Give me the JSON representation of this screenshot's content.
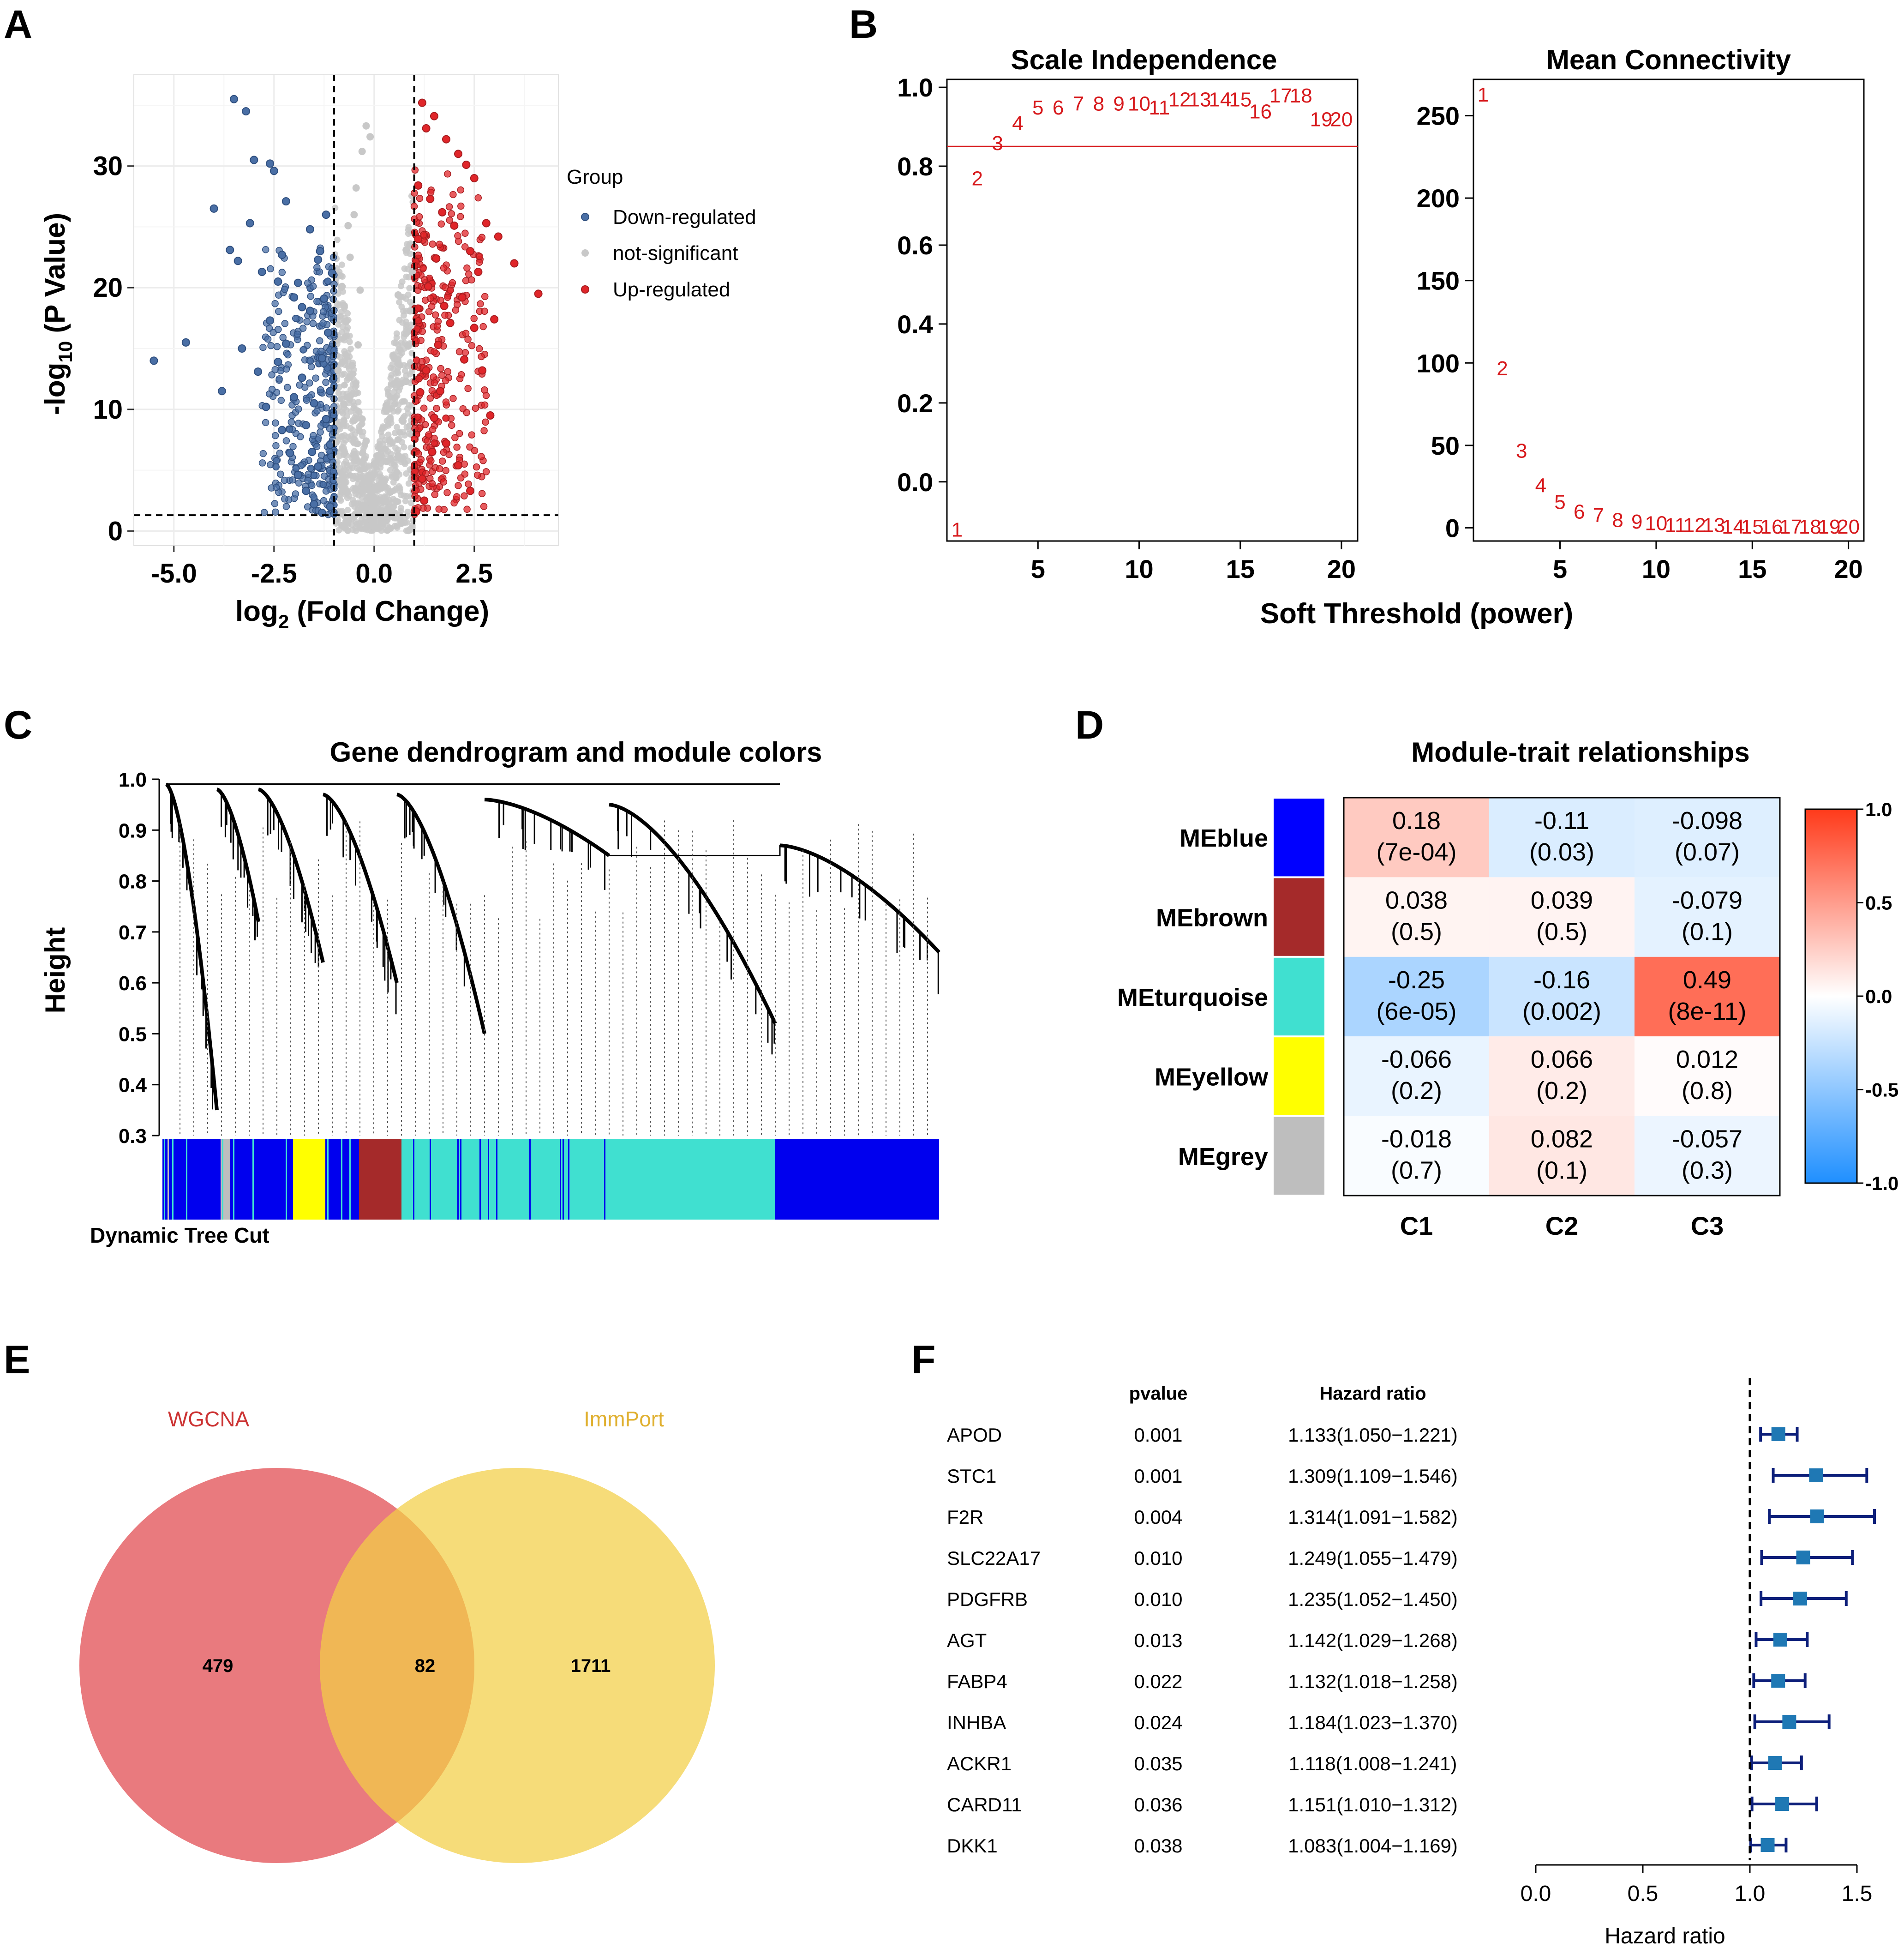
{
  "panels": {
    "a": "A",
    "b": "B",
    "c": "C",
    "d": "D",
    "e": "E",
    "f": "F"
  },
  "chart_data": [
    {
      "id": "A",
      "type": "scatter",
      "title": "",
      "xlabel": "log2 (Fold Change)",
      "ylabel": "-log10 (P Value)",
      "xlabel_parts": {
        "pre": "log",
        "sub": "2",
        "post": " (Fold Change)"
      },
      "ylabel_parts": {
        "pre": "-log",
        "sub": "10",
        "post": " (P Value)"
      },
      "xlim": [
        -6,
        4.6
      ],
      "ylim": [
        -1.2,
        37.5
      ],
      "xticks": [
        -5.0,
        -2.5,
        0.0,
        2.5
      ],
      "xtick_labels": [
        "-5.0",
        "-2.5",
        "0.0",
        "2.5"
      ],
      "yticks": [
        0,
        10,
        20,
        30
      ],
      "ytick_labels": [
        "0",
        "10",
        "20",
        "30"
      ],
      "thresholds": {
        "x": [
          -1,
          1
        ],
        "y": 1.3
      },
      "legend": {
        "title": "Group",
        "placement": "right",
        "entries": [
          {
            "label": "Down-regulated",
            "color": "#4a6fa5"
          },
          {
            "label": "not-significant",
            "color": "#c8c8c8"
          },
          {
            "label": "Up-regulated",
            "color": "#e0262a"
          }
        ]
      },
      "series": [
        {
          "name": "Down-regulated",
          "color": "#4a6fa5",
          "points": [
            [
              -5.5,
              14
            ],
            [
              -4.7,
              15.5
            ],
            [
              -4.0,
              26.5
            ],
            [
              -3.5,
              35.5
            ],
            [
              -3.8,
              11.5
            ],
            [
              -3.2,
              34.5
            ],
            [
              -3.0,
              30.5
            ],
            [
              -2.6,
              30.2
            ],
            [
              -2.5,
              29.6
            ],
            [
              -2.2,
              27.1
            ],
            [
              -3.6,
              23.1
            ],
            [
              -3.4,
              22.2
            ],
            [
              -3.1,
              25.3
            ],
            [
              -2.8,
              21.3
            ],
            [
              -2.4,
              20.5
            ],
            [
              -2.0,
              19.2
            ],
            [
              -1.8,
              18.4
            ],
            [
              -1.6,
              24.8
            ],
            [
              -1.4,
              22.3
            ],
            [
              -1.2,
              26.0
            ],
            [
              -3.3,
              15.0
            ],
            [
              -2.9,
              13.1
            ],
            [
              -2.7,
              10.2
            ],
            [
              -2.3,
              8.3
            ],
            [
              -2.1,
              6.4
            ],
            [
              -1.9,
              4.6
            ],
            [
              -1.7,
              3.3
            ],
            [
              -1.5,
              2.2
            ],
            [
              -1.3,
              1.5
            ],
            [
              -1.1,
              2.0
            ],
            [
              -2.6,
              17.3
            ],
            [
              -2.2,
              15.4
            ],
            [
              -1.8,
              12.6
            ],
            [
              -1.5,
              10.5
            ],
            [
              -1.2,
              9.2
            ],
            [
              -1.1,
              7.1
            ],
            [
              -1.4,
              5.3
            ],
            [
              -1.7,
              8.7
            ],
            [
              -2.0,
              11.0
            ],
            [
              -2.4,
              13.9
            ],
            [
              -1.3,
              14.2
            ],
            [
              -1.15,
              16.3
            ],
            [
              -1.6,
              18.1
            ],
            [
              -1.9,
              20.4
            ],
            [
              -2.3,
              22.7
            ],
            [
              -1.25,
              19.1
            ],
            [
              -1.05,
              21.2
            ],
            [
              -1.35,
              23.0
            ],
            [
              -1.1,
              11.5
            ],
            [
              -1.55,
              6.5
            ]
          ]
        },
        {
          "name": "not-significant",
          "color": "#c8c8c8",
          "points": [
            [
              -0.2,
              33.3
            ],
            [
              -0.1,
              32.4
            ],
            [
              -0.3,
              31.2
            ],
            [
              -0.5,
              26.0
            ],
            [
              -0.6,
              22.5
            ],
            [
              -0.8,
              20.1
            ],
            [
              -0.7,
              17.2
            ],
            [
              -0.4,
              15.3
            ],
            [
              -0.9,
              13.2
            ],
            [
              -0.6,
              11.1
            ],
            [
              -0.3,
              9.2
            ],
            [
              -0.2,
              7.4
            ],
            [
              0.0,
              5.5
            ],
            [
              0.2,
              4.1
            ],
            [
              0.4,
              3.2
            ],
            [
              0.6,
              6.2
            ],
            [
              0.7,
              9.1
            ],
            [
              0.8,
              12.3
            ],
            [
              0.85,
              15.2
            ],
            [
              0.9,
              18.1
            ],
            [
              0.95,
              21.3
            ],
            [
              0.8,
              23.1
            ],
            [
              0.6,
              19.4
            ],
            [
              0.5,
              14.2
            ],
            [
              0.3,
              10.3
            ],
            [
              0.1,
              6.2
            ],
            [
              -0.1,
              3.4
            ],
            [
              -0.3,
              2.0
            ],
            [
              -0.5,
              1.2
            ],
            [
              -0.7,
              0.8
            ],
            [
              0.0,
              0.5
            ],
            [
              0.3,
              0.9
            ],
            [
              0.5,
              1.5
            ],
            [
              -0.85,
              4.2
            ],
            [
              -0.95,
              7.3
            ],
            [
              -0.75,
              10.4
            ],
            [
              -0.55,
              13.6
            ],
            [
              -0.65,
              25.1
            ],
            [
              -0.45,
              28.2
            ],
            [
              -0.35,
              19.8
            ]
          ]
        },
        {
          "name": "Up-regulated",
          "color": "#e0262a",
          "points": [
            [
              1.2,
              35.2
            ],
            [
              1.3,
              33.1
            ],
            [
              1.5,
              34.1
            ],
            [
              1.8,
              32.2
            ],
            [
              2.1,
              31.0
            ],
            [
              2.3,
              30.1
            ],
            [
              2.5,
              29.0
            ],
            [
              2.8,
              25.3
            ],
            [
              3.1,
              24.2
            ],
            [
              3.5,
              22.0
            ],
            [
              4.1,
              19.5
            ],
            [
              1.1,
              28.4
            ],
            [
              1.4,
              27.3
            ],
            [
              1.7,
              26.2
            ],
            [
              2.0,
              25.1
            ],
            [
              2.4,
              23.0
            ],
            [
              2.6,
              21.3
            ],
            [
              2.2,
              19.2
            ],
            [
              1.9,
              17.1
            ],
            [
              1.6,
              15.3
            ],
            [
              1.3,
              13.2
            ],
            [
              1.15,
              11.4
            ],
            [
              1.5,
              9.3
            ],
            [
              1.8,
              7.2
            ],
            [
              2.1,
              5.4
            ],
            [
              2.4,
              3.3
            ],
            [
              1.25,
              2.5
            ],
            [
              1.05,
              1.6
            ],
            [
              2.7,
              13.2
            ],
            [
              2.9,
              9.5
            ],
            [
              3.0,
              17.4
            ],
            [
              1.35,
              20.1
            ],
            [
              1.55,
              22.4
            ],
            [
              1.75,
              18.5
            ],
            [
              1.45,
              6.5
            ],
            [
              1.2,
              4.3
            ],
            [
              1.65,
              11.5
            ],
            [
              2.25,
              14.1
            ],
            [
              2.5,
              16.7
            ],
            [
              1.1,
              24.0
            ]
          ]
        }
      ]
    },
    {
      "id": "B-left",
      "type": "scatter",
      "title": "Scale Independence",
      "xlabel": "Soft Threshold (power)",
      "ylabel": "",
      "xlim": [
        0.5,
        20.8
      ],
      "ylim": [
        -0.15,
        1.02
      ],
      "xticks": [
        5,
        10,
        15,
        20
      ],
      "xtick_labels": [
        "5",
        "10",
        "15",
        "20"
      ],
      "yticks": [
        0.0,
        0.2,
        0.4,
        0.6,
        0.8,
        1.0
      ],
      "ytick_labels": [
        "0.0",
        "0.2",
        "0.4",
        "0.6",
        "0.8",
        "1.0"
      ],
      "hline": 0.85,
      "marker_color": "#d7191c",
      "x": [
        1,
        2,
        3,
        4,
        5,
        6,
        7,
        8,
        9,
        10,
        11,
        12,
        13,
        14,
        15,
        16,
        17,
        18,
        19,
        20
      ],
      "labels": [
        "1",
        "2",
        "3",
        "4",
        "5",
        "6",
        "7",
        "8",
        "9",
        "10",
        "11",
        "12",
        "13",
        "14",
        "15",
        "16",
        "17",
        "18",
        "19",
        "20"
      ],
      "values": [
        -0.12,
        0.77,
        0.86,
        0.91,
        0.95,
        0.95,
        0.96,
        0.96,
        0.96,
        0.96,
        0.95,
        0.97,
        0.97,
        0.97,
        0.97,
        0.94,
        0.98,
        0.98,
        0.92,
        0.92
      ]
    },
    {
      "id": "B-right",
      "type": "scatter",
      "title": "Mean Connectivity",
      "xlabel": "Soft Threshold (power)",
      "ylabel": "",
      "xlim": [
        0.5,
        20.8
      ],
      "ylim": [
        -8,
        272
      ],
      "xticks": [
        5,
        10,
        15,
        20
      ],
      "xtick_labels": [
        "5",
        "10",
        "15",
        "20"
      ],
      "yticks": [
        0,
        50,
        100,
        150,
        200,
        250
      ],
      "ytick_labels": [
        "0",
        "50",
        "100",
        "150",
        "200",
        "250"
      ],
      "marker_color": "#d7191c",
      "x": [
        1,
        2,
        3,
        4,
        5,
        6,
        7,
        8,
        9,
        10,
        11,
        12,
        13,
        14,
        15,
        16,
        17,
        18,
        19,
        20
      ],
      "labels": [
        "1",
        "2",
        "3",
        "4",
        "5",
        "6",
        "7",
        "8",
        "9",
        "10",
        "11",
        "12",
        "13",
        "14",
        "15",
        "16",
        "17",
        "18",
        "19",
        "20"
      ],
      "values": [
        263,
        97,
        47,
        26,
        16,
        10,
        8,
        5,
        4,
        3,
        2,
        2,
        2,
        1,
        1,
        1,
        1,
        1,
        1,
        1
      ]
    },
    {
      "id": "C",
      "type": "dendrogram",
      "title": "Gene dendrogram and module colors",
      "ylabel": "Height",
      "ylim": [
        0.3,
        1.0
      ],
      "yticks": [
        0.3,
        0.4,
        0.5,
        0.6,
        0.7,
        0.8,
        0.9,
        1.0
      ],
      "ytick_labels": [
        "0.3",
        "0.4",
        "0.5",
        "0.6",
        "0.7",
        "0.8",
        "0.9",
        "1.0"
      ],
      "color_bar_label": "Dynamic Tree Cut",
      "module_colors": [
        "#0000ee",
        "#bebebe",
        "#ffff00",
        "#a52a2a",
        "#40e0d0"
      ]
    },
    {
      "id": "D",
      "type": "heatmap",
      "title": "Module-trait relationships",
      "rows": [
        "MEblue",
        "MEbrown",
        "MEturquoise",
        "MEyellow",
        "MEgrey"
      ],
      "row_colors": [
        "#0000ff",
        "#a52a2a",
        "#40e0d0",
        "#ffff00",
        "#bebebe"
      ],
      "columns": [
        "C1",
        "C2",
        "C3"
      ],
      "values": [
        [
          0.18,
          -0.11,
          -0.098
        ],
        [
          0.038,
          0.039,
          -0.079
        ],
        [
          -0.25,
          -0.16,
          0.49
        ],
        [
          -0.066,
          0.066,
          0.012
        ],
        [
          -0.018,
          0.082,
          -0.057
        ]
      ],
      "value_labels": [
        [
          "0.18",
          "-0.11",
          "-0.098"
        ],
        [
          "0.038",
          "0.039",
          "-0.079"
        ],
        [
          "-0.25",
          "-0.16",
          "0.49"
        ],
        [
          "-0.066",
          "0.066",
          "0.012"
        ],
        [
          "-0.018",
          "0.082",
          "-0.057"
        ]
      ],
      "pvalues": [
        [
          "(7e-04)",
          "(0.03)",
          "(0.07)"
        ],
        [
          "(0.5)",
          "(0.5)",
          "(0.1)"
        ],
        [
          "(6e-05)",
          "(0.002)",
          "(8e-11)"
        ],
        [
          "(0.2)",
          "(0.2)",
          "(0.8)"
        ],
        [
          "(0.7)",
          "(0.1)",
          "(0.3)"
        ]
      ],
      "colorbar": {
        "range": [
          -1,
          1
        ],
        "ticks": [
          1.0,
          0.5,
          0.0,
          -0.5,
          -1.0
        ],
        "tick_labels": [
          "1.0",
          "0.5",
          "0.0",
          "-0.5",
          "-1.0"
        ],
        "low": "#1f8fff",
        "mid": "#ffffff",
        "high": "#ff3a1a"
      }
    },
    {
      "id": "E",
      "type": "venn",
      "sets": [
        {
          "name": "WGCNA",
          "color": "#e0474c",
          "label_color": "#cc3333"
        },
        {
          "name": "ImmPort",
          "color": "#f2cf45",
          "label_color": "#e0b030"
        }
      ],
      "counts": {
        "only_a": 479,
        "intersection": 82,
        "only_b": 1711
      },
      "count_labels": {
        "only_a": "479",
        "intersection": "82",
        "only_b": "1711"
      }
    },
    {
      "id": "F",
      "type": "forest",
      "xlabel": "Hazard ratio",
      "xlim": [
        0.0,
        1.5
      ],
      "xticks": [
        0.0,
        0.5,
        1.0,
        1.5
      ],
      "xtick_labels": [
        "0.0",
        "0.5",
        "1.0",
        "1.5"
      ],
      "reference_line": 1.0,
      "columns": {
        "gene": "",
        "pvalue": "pvalue",
        "hr": "Hazard ratio"
      },
      "box_color": "#1f78b4",
      "ci_color": "#0d1f7a",
      "rows": [
        {
          "gene": "APOD",
          "pvalue": "0.001",
          "hr_text": "1.133(1.050−1.221)",
          "hr": 1.133,
          "lower": 1.05,
          "upper": 1.221
        },
        {
          "gene": "STC1",
          "pvalue": "0.001",
          "hr_text": "1.309(1.109−1.546)",
          "hr": 1.309,
          "lower": 1.109,
          "upper": 1.546
        },
        {
          "gene": "F2R",
          "pvalue": "0.004",
          "hr_text": "1.314(1.091−1.582)",
          "hr": 1.314,
          "lower": 1.091,
          "upper": 1.582
        },
        {
          "gene": "SLC22A17",
          "pvalue": "0.010",
          "hr_text": "1.249(1.055−1.479)",
          "hr": 1.249,
          "lower": 1.055,
          "upper": 1.479
        },
        {
          "gene": "PDGFRB",
          "pvalue": "0.010",
          "hr_text": "1.235(1.052−1.450)",
          "hr": 1.235,
          "lower": 1.052,
          "upper": 1.45
        },
        {
          "gene": "AGT",
          "pvalue": "0.013",
          "hr_text": "1.142(1.029−1.268)",
          "hr": 1.142,
          "lower": 1.029,
          "upper": 1.268
        },
        {
          "gene": "FABP4",
          "pvalue": "0.022",
          "hr_text": "1.132(1.018−1.258)",
          "hr": 1.132,
          "lower": 1.018,
          "upper": 1.258
        },
        {
          "gene": "INHBA",
          "pvalue": "0.024",
          "hr_text": "1.184(1.023−1.370)",
          "hr": 1.184,
          "lower": 1.023,
          "upper": 1.37
        },
        {
          "gene": "ACKR1",
          "pvalue": "0.035",
          "hr_text": "1.118(1.008−1.241)",
          "hr": 1.118,
          "lower": 1.008,
          "upper": 1.241
        },
        {
          "gene": "CARD11",
          "pvalue": "0.036",
          "hr_text": "1.151(1.010−1.312)",
          "hr": 1.151,
          "lower": 1.01,
          "upper": 1.312
        },
        {
          "gene": "DKK1",
          "pvalue": "0.038",
          "hr_text": "1.083(1.004−1.169)",
          "hr": 1.083,
          "lower": 1.004,
          "upper": 1.169
        }
      ]
    }
  ]
}
